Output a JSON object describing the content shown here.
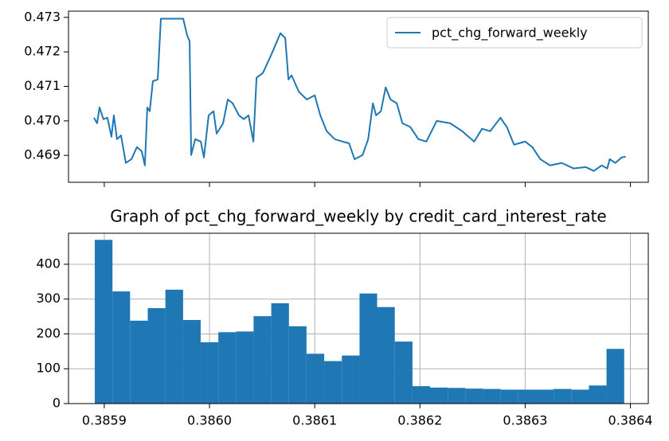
{
  "chart_data": [
    {
      "type": "line",
      "x": [
        0.3858902,
        0.3858932,
        0.3858955,
        0.3858992,
        0.385903,
        0.3859068,
        0.3859091,
        0.3859121,
        0.3859159,
        0.3859205,
        0.3859258,
        0.385931,
        0.3859356,
        0.3859386,
        0.3859409,
        0.3859432,
        0.3859462,
        0.3859508,
        0.3859538,
        0.385975,
        0.3859788,
        0.3859811,
        0.3859826,
        0.3859864,
        0.3859917,
        0.3859947,
        0.3859992,
        0.3860038,
        0.3860068,
        0.3860129,
        0.3860174,
        0.386022,
        0.386028,
        0.3860326,
        0.3860371,
        0.3860417,
        0.3860447,
        0.3860508,
        0.3860583,
        0.3860674,
        0.386072,
        0.386075,
        0.386078,
        0.3860848,
        0.3860924,
        0.3861,
        0.3861053,
        0.3861114,
        0.386119,
        0.3861265,
        0.3861326,
        0.3861379,
        0.3861455,
        0.3861508,
        0.3861553,
        0.3861583,
        0.3861629,
        0.3861674,
        0.386172,
        0.386178,
        0.3861833,
        0.3861909,
        0.3861985,
        0.3862061,
        0.386216,
        0.3862288,
        0.3862402,
        0.3862515,
        0.386259,
        0.3862667,
        0.3862765,
        0.3862826,
        0.3862894,
        0.3863,
        0.3863068,
        0.3863144,
        0.3863235,
        0.3863348,
        0.3863462,
        0.3863576,
        0.3863652,
        0.3863727,
        0.386378,
        0.3863803,
        0.3863856,
        0.3863917,
        0.3863955
      ],
      "series": [
        {
          "name": "pct_chg_forward_weekly",
          "color": "#1f77b4",
          "values": [
            0.47009,
            0.46993,
            0.47039,
            0.47005,
            0.47009,
            0.46954,
            0.47016,
            0.46947,
            0.46958,
            0.46878,
            0.46889,
            0.46924,
            0.46912,
            0.46871,
            0.47039,
            0.47028,
            0.47115,
            0.4712,
            0.47296,
            0.47296,
            0.47247,
            0.47231,
            0.46901,
            0.46947,
            0.4694,
            0.46894,
            0.47016,
            0.47028,
            0.46963,
            0.46993,
            0.47062,
            0.47051,
            0.47016,
            0.47005,
            0.47016,
            0.4694,
            0.47125,
            0.47139,
            0.47189,
            0.47254,
            0.4724,
            0.4712,
            0.47132,
            0.47085,
            0.47062,
            0.47074,
            0.47016,
            0.4697,
            0.46947,
            0.4694,
            0.46935,
            0.46889,
            0.46901,
            0.46947,
            0.47051,
            0.47016,
            0.47028,
            0.47097,
            0.47062,
            0.47051,
            0.46993,
            0.46982,
            0.46947,
            0.4694,
            0.47,
            0.46993,
            0.4697,
            0.4694,
            0.46977,
            0.4697,
            0.47009,
            0.46982,
            0.46931,
            0.4694,
            0.46924,
            0.46889,
            0.46871,
            0.46878,
            0.46862,
            0.46866,
            0.46855,
            0.46871,
            0.46862,
            0.46889,
            0.46878,
            0.46894,
            0.46896
          ]
        }
      ],
      "xlim": [
        0.385866,
        0.386417
      ],
      "xticks": [
        0.3859,
        {
          "value": 0.386,
          "label": "0.3860"
        },
        0.3861,
        0.3862,
        0.3863,
        0.3864
      ],
      "xticklabels": false,
      "ylim": [
        0.46822,
        0.47318
      ],
      "yticks": [
        0.469,
        {
          "value": 0.47,
          "label": "0.470"
        },
        0.471,
        0.472,
        0.473
      ],
      "grid": false,
      "legend": "upper right"
    },
    {
      "type": "histogram",
      "title": "Graph of pct_chg_forward_weekly by credit_card_interest_rate",
      "bins": [
        0.385891,
        0.3859078,
        0.3859245,
        0.3859413,
        0.3859581,
        0.3859749,
        0.3859916,
        0.3860084,
        0.3860252,
        0.3860419,
        0.3860587,
        0.3860755,
        0.3860922,
        0.386109,
        0.3861258,
        0.3861426,
        0.3861593,
        0.3861761,
        0.3861929,
        0.3862096,
        0.3862264,
        0.3862432,
        0.3862599,
        0.3862767,
        0.3862935,
        0.3863103,
        0.386327,
        0.3863438,
        0.3863606,
        0.3863773,
        0.3863941
      ],
      "counts": [
        470,
        322,
        238,
        274,
        327,
        240,
        176,
        205,
        207,
        251,
        288,
        222,
        143,
        122,
        138,
        316,
        277,
        178,
        50,
        46,
        45,
        43,
        42,
        40,
        40,
        40,
        42,
        40,
        52,
        157
      ],
      "color": "#1f77b4",
      "xlim": [
        0.385866,
        0.386417
      ],
      "xticks": [
        0.3859,
        {
          "value": 0.386,
          "label": "0.3860"
        },
        0.3861,
        0.3862,
        0.3863,
        0.3864
      ],
      "ylim": [
        0,
        489
      ],
      "yticks": [
        0,
        100,
        200,
        300,
        400
      ],
      "grid": true
    }
  ]
}
